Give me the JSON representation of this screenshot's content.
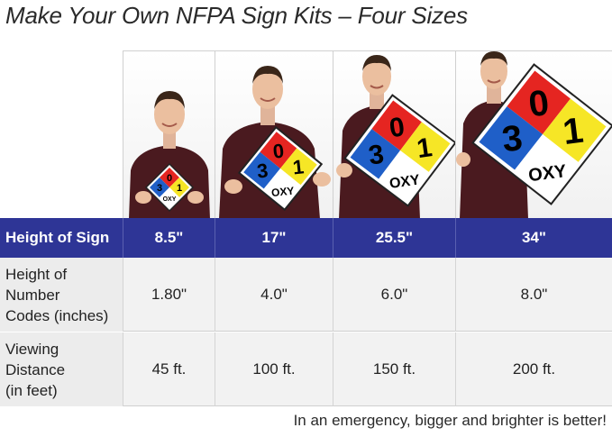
{
  "title": "Make Your Own NFPA Sign Kits – Four Sizes",
  "sign": {
    "health": "3",
    "flammability": "0",
    "instability": "1",
    "special": "OXY"
  },
  "table": {
    "rows": [
      {
        "label": "Height of Sign",
        "values": [
          "8.5\"",
          "17\"",
          "25.5\"",
          "34\""
        ]
      },
      {
        "label": "Height of Number Codes (inches)",
        "label_lines": [
          "Height of",
          "Number",
          "Codes (inches)"
        ],
        "values": [
          "1.80\"",
          "4.0\"",
          "6.0\"",
          "8.0\""
        ]
      },
      {
        "label": "Viewing Distance (in feet)",
        "label_lines": [
          "Viewing",
          "Distance",
          "(in feet)"
        ],
        "values": [
          "45 ft.",
          "100 ft.",
          "150 ft.",
          "200 ft."
        ]
      }
    ]
  },
  "tagline": "In an emergency, bigger and brighter is better!",
  "colors": {
    "header_bg": "#2e3596",
    "health": "#1f5fc8",
    "flammability": "#e52521",
    "instability": "#f6e626",
    "special": "#ffffff",
    "shirt": "#4a1a1f"
  }
}
